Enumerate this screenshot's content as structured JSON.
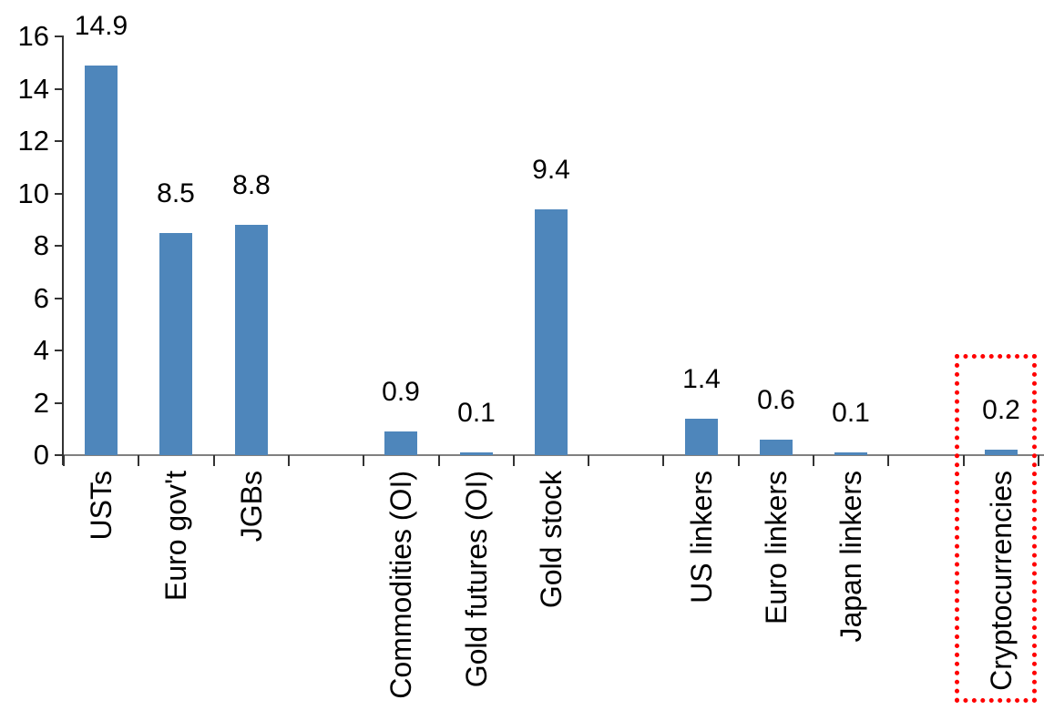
{
  "chart_data": {
    "type": "bar",
    "title": "",
    "xlabel": "",
    "ylabel": "",
    "categories": [
      "USTs",
      "Euro gov't",
      "JGBs",
      "",
      "Commodities (OI)",
      "Gold futures (OI)",
      "Gold stock",
      "",
      "US linkers",
      "Euro linkers",
      "Japan linkers",
      "",
      "Cryptocurrencies"
    ],
    "values": [
      14.9,
      8.5,
      8.8,
      null,
      0.9,
      0.1,
      9.4,
      null,
      1.4,
      0.6,
      0.1,
      null,
      0.2
    ],
    "data_labels": [
      "14.9",
      "8.5",
      "8.8",
      "",
      "0.9",
      "0.1",
      "9.4",
      "",
      "1.4",
      "0.6",
      "0.1",
      "",
      "0.2"
    ],
    "ylim": [
      0,
      16
    ],
    "ytick_step": 2,
    "ytick_labels": [
      "0",
      "2",
      "4",
      "6",
      "8",
      "10",
      "12",
      "14",
      "16"
    ],
    "grid": false,
    "legend": false,
    "bar_color": "#4e86bb",
    "x_axis_line_color": "#808080",
    "y_axis_line_color": "#333333",
    "tick_color": "#333333",
    "text_color": "#000000",
    "highlight": {
      "category": "Cryptocurrencies",
      "index": 12,
      "box_color": "#ff0000",
      "box_style": "dotted"
    }
  }
}
